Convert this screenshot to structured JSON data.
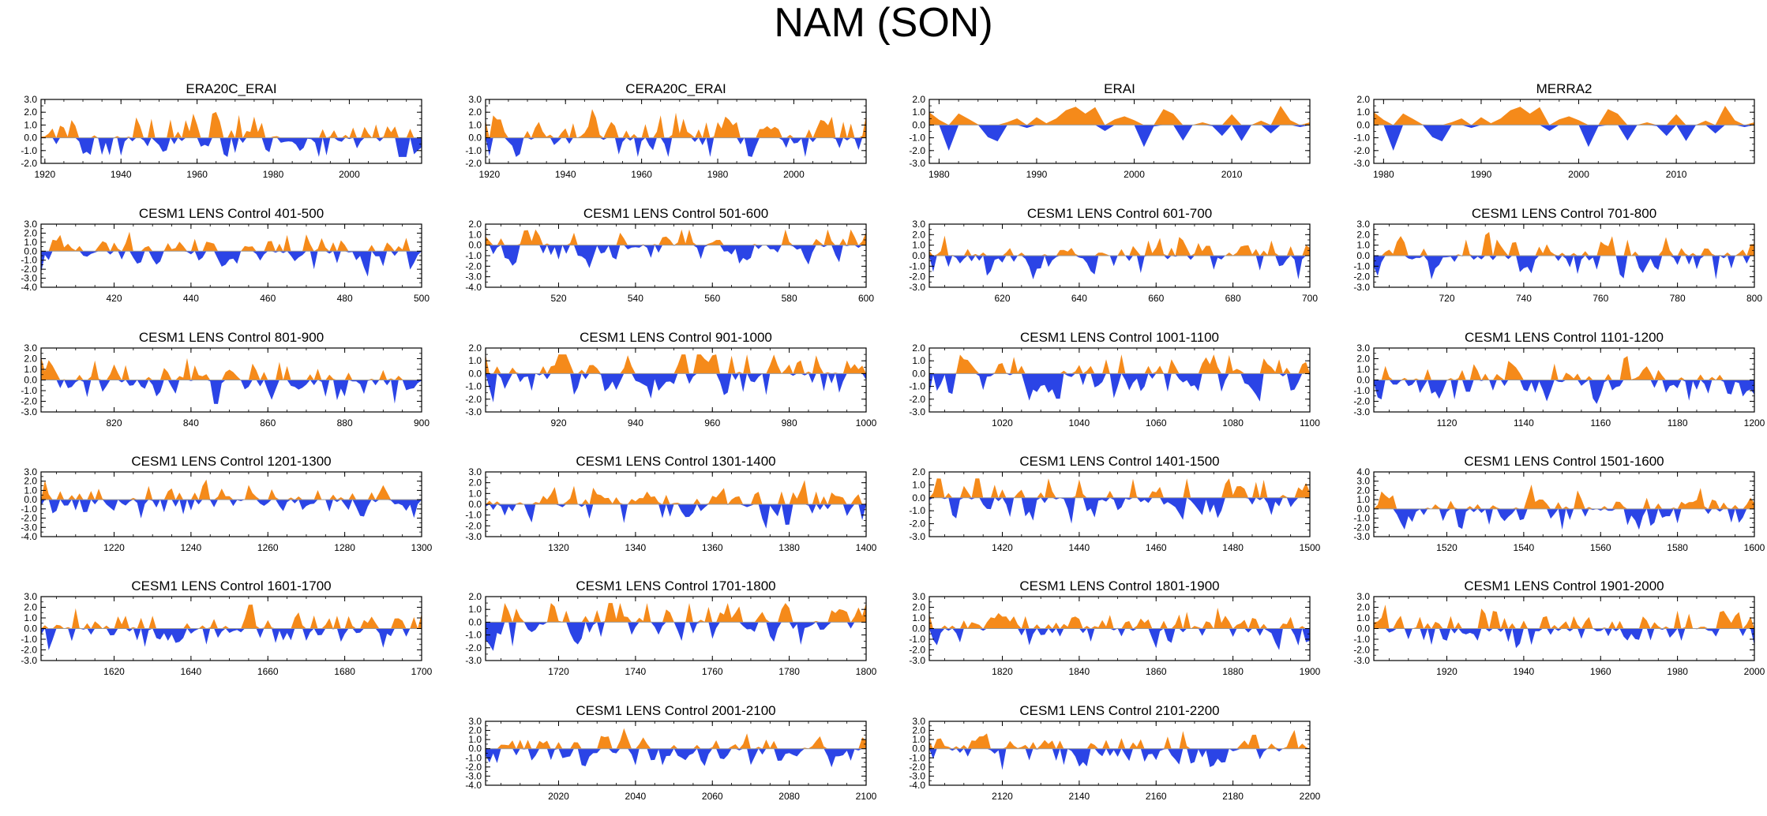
{
  "title": "NAM (SON)",
  "colors": {
    "positive": "#F58A1A",
    "negative": "#2B44E6",
    "axis": "#000000",
    "zero_line": "#9A9A9A"
  },
  "chart_data": [
    {
      "type": "area",
      "title": "ERA20C_ERAI",
      "xlim": [
        1919,
        2019
      ],
      "ylim": [
        -2.0,
        3.0
      ],
      "yticks": [
        -2.0,
        -1.0,
        0.0,
        1.0,
        2.0,
        3.0
      ],
      "xticks": [
        1920,
        1940,
        1960,
        1980,
        2000
      ],
      "seed": 11
    },
    {
      "type": "area",
      "title": "CERA20C_ERAI",
      "xlim": [
        1919,
        2019
      ],
      "ylim": [
        -2.0,
        3.0
      ],
      "yticks": [
        -2.0,
        -1.0,
        0.0,
        1.0,
        2.0,
        3.0
      ],
      "xticks": [
        1920,
        1940,
        1960,
        1980,
        2000
      ],
      "seed": 23
    },
    {
      "type": "area",
      "title": "ERAI",
      "xlim": [
        1979,
        2018
      ],
      "ylim": [
        -3.0,
        2.0
      ],
      "yticks": [
        -3.0,
        -2.0,
        -1.0,
        0.0,
        1.0,
        2.0
      ],
      "xticks": [
        1980,
        1990,
        2000,
        2010
      ],
      "seed": 37
    },
    {
      "type": "area",
      "title": "MERRA2",
      "xlim": [
        1979,
        2018
      ],
      "ylim": [
        -3.0,
        2.0
      ],
      "yticks": [
        -3.0,
        -2.0,
        -1.0,
        0.0,
        1.0,
        2.0
      ],
      "xticks": [
        1980,
        1990,
        2000,
        2010
      ],
      "seed": 37
    },
    {
      "type": "area",
      "title": "CESM1 LENS Control 401-500",
      "xlim": [
        401,
        500
      ],
      "ylim": [
        -4.0,
        3.0
      ],
      "yticks": [
        -4.0,
        -3.0,
        -2.0,
        -1.0,
        0.0,
        1.0,
        2.0,
        3.0
      ],
      "xticks": [
        420,
        440,
        460,
        480,
        500
      ],
      "seed": 41
    },
    {
      "type": "area",
      "title": "CESM1 LENS Control 501-600",
      "xlim": [
        501,
        600
      ],
      "ylim": [
        -4.0,
        2.0
      ],
      "yticks": [
        -4.0,
        -3.0,
        -2.0,
        -1.0,
        0.0,
        1.0,
        2.0
      ],
      "xticks": [
        520,
        540,
        560,
        580,
        600
      ],
      "seed": 53
    },
    {
      "type": "area",
      "title": "CESM1 LENS Control 601-700",
      "xlim": [
        601,
        700
      ],
      "ylim": [
        -3.0,
        3.0
      ],
      "yticks": [
        -3.0,
        -2.0,
        -1.0,
        0.0,
        1.0,
        2.0,
        3.0
      ],
      "xticks": [
        620,
        640,
        660,
        680,
        700
      ],
      "seed": 67
    },
    {
      "type": "area",
      "title": "CESM1 LENS Control 701-800",
      "xlim": [
        701,
        800
      ],
      "ylim": [
        -3.0,
        3.0
      ],
      "yticks": [
        -3.0,
        -2.0,
        -1.0,
        0.0,
        1.0,
        2.0,
        3.0
      ],
      "xticks": [
        720,
        740,
        760,
        780,
        800
      ],
      "seed": 71
    },
    {
      "type": "area",
      "title": "CESM1 LENS Control 801-900",
      "xlim": [
        801,
        900
      ],
      "ylim": [
        -3.0,
        3.0
      ],
      "yticks": [
        -3.0,
        -2.0,
        -1.0,
        0.0,
        1.0,
        2.0,
        3.0
      ],
      "xticks": [
        820,
        840,
        860,
        880,
        900
      ],
      "seed": 83
    },
    {
      "type": "area",
      "title": "CESM1 LENS Control 901-1000",
      "xlim": [
        901,
        1000
      ],
      "ylim": [
        -3.0,
        2.0
      ],
      "yticks": [
        -3.0,
        -2.0,
        -1.0,
        0.0,
        1.0,
        2.0
      ],
      "xticks": [
        920,
        940,
        960,
        980,
        1000
      ],
      "seed": 97
    },
    {
      "type": "area",
      "title": "CESM1 LENS Control 1001-1100",
      "xlim": [
        1001,
        1100
      ],
      "ylim": [
        -3.0,
        2.0
      ],
      "yticks": [
        -3.0,
        -2.0,
        -1.0,
        0.0,
        1.0,
        2.0
      ],
      "xticks": [
        1020,
        1040,
        1060,
        1080,
        1100
      ],
      "seed": 101
    },
    {
      "type": "area",
      "title": "CESM1 LENS Control 1101-1200",
      "xlim": [
        1101,
        1200
      ],
      "ylim": [
        -3.0,
        3.0
      ],
      "yticks": [
        -3.0,
        -2.0,
        -1.0,
        0.0,
        1.0,
        2.0,
        3.0
      ],
      "xticks": [
        1120,
        1140,
        1160,
        1180,
        1200
      ],
      "seed": 113
    },
    {
      "type": "area",
      "title": "CESM1 LENS Control 1201-1300",
      "xlim": [
        1201,
        1300
      ],
      "ylim": [
        -4.0,
        3.0
      ],
      "yticks": [
        -4.0,
        -3.0,
        -2.0,
        -1.0,
        0.0,
        1.0,
        2.0,
        3.0
      ],
      "xticks": [
        1220,
        1240,
        1260,
        1280,
        1300
      ],
      "seed": 127
    },
    {
      "type": "area",
      "title": "CESM1 LENS Control 1301-1400",
      "xlim": [
        1301,
        1400
      ],
      "ylim": [
        -3.0,
        3.0
      ],
      "yticks": [
        -3.0,
        -2.0,
        -1.0,
        0.0,
        1.0,
        2.0,
        3.0
      ],
      "xticks": [
        1320,
        1340,
        1360,
        1380,
        1400
      ],
      "seed": 131
    },
    {
      "type": "area",
      "title": "CESM1 LENS Control 1401-1500",
      "xlim": [
        1401,
        1500
      ],
      "ylim": [
        -3.0,
        2.0
      ],
      "yticks": [
        -3.0,
        -2.0,
        -1.0,
        0.0,
        1.0,
        2.0
      ],
      "xticks": [
        1420,
        1440,
        1460,
        1480,
        1500
      ],
      "seed": 149
    },
    {
      "type": "area",
      "title": "CESM1 LENS Control 1501-1600",
      "xlim": [
        1501,
        1600
      ],
      "ylim": [
        -3.0,
        4.0
      ],
      "yticks": [
        -3.0,
        -2.0,
        -1.0,
        0.0,
        1.0,
        2.0,
        3.0,
        4.0
      ],
      "xticks": [
        1520,
        1540,
        1560,
        1580,
        1600
      ],
      "seed": 151
    },
    {
      "type": "area",
      "title": "CESM1 LENS Control 1601-1700",
      "xlim": [
        1601,
        1700
      ],
      "ylim": [
        -3.0,
        3.0
      ],
      "yticks": [
        -3.0,
        -2.0,
        -1.0,
        0.0,
        1.0,
        2.0,
        3.0
      ],
      "xticks": [
        1620,
        1640,
        1660,
        1680,
        1700
      ],
      "seed": 163
    },
    {
      "type": "area",
      "title": "CESM1 LENS Control 1701-1800",
      "xlim": [
        1701,
        1800
      ],
      "ylim": [
        -3.0,
        2.0
      ],
      "yticks": [
        -3.0,
        -2.0,
        -1.0,
        0.0,
        1.0,
        2.0
      ],
      "xticks": [
        1720,
        1740,
        1760,
        1780,
        1800
      ],
      "seed": 173
    },
    {
      "type": "area",
      "title": "CESM1 LENS Control 1801-1900",
      "xlim": [
        1801,
        1900
      ],
      "ylim": [
        -3.0,
        3.0
      ],
      "yticks": [
        -3.0,
        -2.0,
        -1.0,
        0.0,
        1.0,
        2.0,
        3.0
      ],
      "xticks": [
        1820,
        1840,
        1860,
        1880,
        1900
      ],
      "seed": 181
    },
    {
      "type": "area",
      "title": "CESM1 LENS Control 1901-2000",
      "xlim": [
        1901,
        2000
      ],
      "ylim": [
        -3.0,
        3.0
      ],
      "yticks": [
        -3.0,
        -2.0,
        -1.0,
        0.0,
        1.0,
        2.0,
        3.0
      ],
      "xticks": [
        1920,
        1940,
        1960,
        1980,
        2000
      ],
      "seed": 191
    },
    {
      "type": "area",
      "title": "CESM1 LENS Control 2001-2100",
      "xlim": [
        2001,
        2100
      ],
      "ylim": [
        -4.0,
        3.0
      ],
      "yticks": [
        -4.0,
        -3.0,
        -2.0,
        -1.0,
        0.0,
        1.0,
        2.0,
        3.0
      ],
      "xticks": [
        2020,
        2040,
        2060,
        2080,
        2100
      ],
      "seed": 197
    },
    {
      "type": "area",
      "title": "CESM1 LENS Control 2101-2200",
      "xlim": [
        2101,
        2200
      ],
      "ylim": [
        -4.0,
        3.0
      ],
      "yticks": [
        -4.0,
        -3.0,
        -2.0,
        -1.0,
        0.0,
        1.0,
        2.0,
        3.0
      ],
      "xticks": [
        2120,
        2140,
        2160,
        2180,
        2200
      ],
      "seed": 211
    }
  ]
}
